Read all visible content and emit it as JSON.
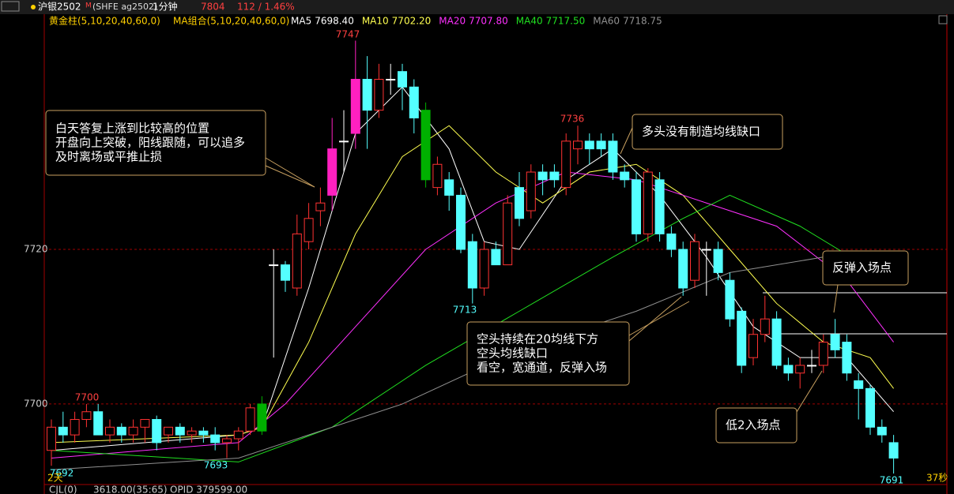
{
  "header": {
    "symbol": "沪银2502",
    "flag": "M",
    "code": "(SHFE ag2502)",
    "period": "1分钟",
    "price": "7804",
    "change": "112 / 1.46%"
  },
  "indicators": {
    "golden": "黄金柱(5,10,20,40,60,0)",
    "ma_group": "MA组合(5,10,20,40,60,0)"
  },
  "chart_data": {
    "type": "candlestick",
    "ylim": [
      7690.5,
      7749.5
    ],
    "yticks": [
      7700,
      7720
    ],
    "grid": true,
    "up_color": "#ff3232",
    "down_color": "#54ffff",
    "doji_color": "#ffffff",
    "candles": [
      {
        "open": 7694,
        "high": 7698,
        "low": 7692,
        "close": 7697
      },
      {
        "open": 7697,
        "high": 7699,
        "low": 7695,
        "close": 7696
      },
      {
        "open": 7696,
        "high": 7699,
        "low": 7695,
        "close": 7698
      },
      {
        "open": 7698,
        "high": 7700,
        "low": 7697,
        "close": 7699
      },
      {
        "open": 7699,
        "high": 7700,
        "low": 7696,
        "close": 7696
      },
      {
        "open": 7696,
        "high": 7698,
        "low": 7695,
        "close": 7697
      },
      {
        "open": 7697,
        "high": 7697.5,
        "low": 7695,
        "close": 7696
      },
      {
        "open": 7696,
        "high": 7698,
        "low": 7695,
        "close": 7697
      },
      {
        "open": 7697,
        "high": 7698,
        "low": 7695,
        "close": 7698
      },
      {
        "open": 7698,
        "high": 7698.5,
        "low": 7694,
        "close": 7695
      },
      {
        "open": 7696,
        "high": 7697,
        "low": 7695,
        "close": 7697
      },
      {
        "open": 7697,
        "high": 7697.5,
        "low": 7695,
        "close": 7696
      },
      {
        "open": 7696,
        "high": 7697,
        "low": 7695,
        "close": 7696.5
      },
      {
        "open": 7696.5,
        "high": 7697,
        "low": 7695,
        "close": 7696
      },
      {
        "open": 7696,
        "high": 7697,
        "low": 7694,
        "close": 7695
      },
      {
        "open": 7695,
        "high": 7696,
        "low": 7693,
        "close": 7695.5
      },
      {
        "open": 7695.5,
        "high": 7697,
        "low": 7694,
        "close": 7696.5
      },
      {
        "open": 7696.5,
        "high": 7700,
        "low": 7696,
        "close": 7699.5
      },
      {
        "open": 7696.5,
        "high": 7701,
        "low": 7696,
        "close": 7700,
        "fill": "#00b000"
      },
      {
        "open": 7718,
        "high": 7720,
        "low": 7706,
        "close": 7718
      },
      {
        "open": 7718,
        "high": 7718.5,
        "low": 7714.5,
        "close": 7716
      },
      {
        "open": 7715,
        "high": 7724.5,
        "low": 7714,
        "close": 7722
      },
      {
        "open": 7721,
        "high": 7726,
        "low": 7720,
        "close": 7724
      },
      {
        "open": 7725,
        "high": 7728,
        "low": 7723,
        "close": 7726
      },
      {
        "open": 7727,
        "high": 7737,
        "low": 7725,
        "close": 7733,
        "fill": "#ff20c0"
      },
      {
        "open": 7734,
        "high": 7738,
        "low": 7730,
        "close": 7734
      },
      {
        "open": 7735,
        "high": 7747,
        "low": 7733,
        "close": 7742,
        "fill": "#ff20c0"
      },
      {
        "open": 7742,
        "high": 7745,
        "low": 7733,
        "close": 7738
      },
      {
        "open": 7738,
        "high": 7744,
        "low": 7737,
        "close": 7742
      },
      {
        "open": 7742,
        "high": 7744,
        "low": 7740,
        "close": 7742
      },
      {
        "open": 7743,
        "high": 7744,
        "low": 7738,
        "close": 7741
      },
      {
        "open": 7741,
        "high": 7742,
        "low": 7735,
        "close": 7737
      },
      {
        "open": 7738,
        "high": 7739,
        "low": 7728,
        "close": 7729,
        "fill": "#00b000"
      },
      {
        "open": 7728,
        "high": 7732,
        "low": 7727,
        "close": 7731
      },
      {
        "open": 7729,
        "high": 7730,
        "low": 7725,
        "close": 7727
      },
      {
        "open": 7727,
        "high": 7728,
        "low": 7719.5,
        "close": 7720
      },
      {
        "open": 7721,
        "high": 7722,
        "low": 7713,
        "close": 7715
      },
      {
        "open": 7715,
        "high": 7721,
        "low": 7714,
        "close": 7720
      },
      {
        "open": 7720,
        "high": 7721,
        "low": 7718,
        "close": 7718
      },
      {
        "open": 7718,
        "high": 7727,
        "low": 7718,
        "close": 7726
      },
      {
        "open": 7728,
        "high": 7730,
        "low": 7723,
        "close": 7724
      },
      {
        "open": 7725,
        "high": 7731,
        "low": 7724,
        "close": 7730
      },
      {
        "open": 7730,
        "high": 7731,
        "low": 7727,
        "close": 7729
      },
      {
        "open": 7730,
        "high": 7731,
        "low": 7728,
        "close": 7729
      },
      {
        "open": 7728,
        "high": 7735,
        "low": 7727,
        "close": 7734
      },
      {
        "open": 7733,
        "high": 7736,
        "low": 7731,
        "close": 7734
      },
      {
        "open": 7734,
        "high": 7735,
        "low": 7731,
        "close": 7733
      },
      {
        "open": 7734,
        "high": 7735,
        "low": 7732,
        "close": 7733
      },
      {
        "open": 7734,
        "high": 7735,
        "low": 7729,
        "close": 7730
      },
      {
        "open": 7730,
        "high": 7731,
        "low": 7728,
        "close": 7729
      },
      {
        "open": 7729,
        "high": 7730,
        "low": 7721,
        "close": 7722
      },
      {
        "open": 7722,
        "high": 7730.5,
        "low": 7721,
        "close": 7730
      },
      {
        "open": 7729,
        "high": 7730,
        "low": 7721,
        "close": 7722
      },
      {
        "open": 7722,
        "high": 7723,
        "low": 7719,
        "close": 7720
      },
      {
        "open": 7720,
        "high": 7721,
        "low": 7714,
        "close": 7715
      },
      {
        "open": 7716,
        "high": 7722,
        "low": 7715,
        "close": 7721
      },
      {
        "open": 7720,
        "high": 7721,
        "low": 7714,
        "close": 7720
      },
      {
        "open": 7720,
        "high": 7721,
        "low": 7716,
        "close": 7717
      },
      {
        "open": 7716,
        "high": 7717,
        "low": 7710,
        "close": 7711
      },
      {
        "open": 7712,
        "high": 7712.5,
        "low": 7704,
        "close": 7705
      },
      {
        "open": 7706,
        "high": 7711,
        "low": 7705,
        "close": 7709
      },
      {
        "open": 7709,
        "high": 7714,
        "low": 7708,
        "close": 7711
      },
      {
        "open": 7711,
        "high": 7712,
        "low": 7704.5,
        "close": 7705
      },
      {
        "open": 7705,
        "high": 7706,
        "low": 7703,
        "close": 7704
      },
      {
        "open": 7704,
        "high": 7706,
        "low": 7702,
        "close": 7705
      },
      {
        "open": 7705,
        "high": 7707,
        "low": 7704,
        "close": 7705
      },
      {
        "open": 7705,
        "high": 7709,
        "low": 7704,
        "close": 7708
      },
      {
        "open": 7709,
        "high": 7711,
        "low": 7706,
        "close": 7707
      },
      {
        "open": 7708,
        "high": 7709,
        "low": 7703,
        "close": 7704
      },
      {
        "open": 7703,
        "high": 7704,
        "low": 7698,
        "close": 7702
      },
      {
        "open": 7702,
        "high": 7702.5,
        "low": 7696,
        "close": 7697
      },
      {
        "open": 7697,
        "high": 7698,
        "low": 7695,
        "close": 7696
      },
      {
        "open": 7695,
        "high": 7696,
        "low": 7691,
        "close": 7693
      }
    ],
    "series": [
      {
        "name": "MA5",
        "value_label": "7698.40",
        "color": "#ffffff",
        "x": [
          0,
          16,
          18,
          22,
          26,
          30,
          34,
          37,
          40,
          44,
          48,
          52,
          56,
          60,
          64,
          68,
          72
        ],
        "values": [
          7694,
          7696,
          7697,
          7715,
          7735,
          7741,
          7733,
          7721,
          7720,
          7729,
          7733,
          7727,
          7719,
          7710,
          7706,
          7706,
          7699
        ]
      },
      {
        "name": "MA10",
        "value_label": "7702.20",
        "color": "#ffff50",
        "x": [
          0,
          16,
          18,
          22,
          26,
          30,
          34,
          38,
          42,
          46,
          50,
          54,
          58,
          62,
          66,
          70,
          72
        ],
        "values": [
          7695,
          7696,
          7697,
          7708,
          7722,
          7732,
          7736,
          7730,
          7726,
          7730,
          7731,
          7727,
          7720,
          7713,
          7708,
          7706,
          7702
        ]
      },
      {
        "name": "MA20",
        "value_label": "7707.80",
        "color": "#ff30ff",
        "x": [
          0,
          16,
          20,
          26,
          32,
          38,
          44,
          50,
          56,
          62,
          68,
          72
        ],
        "values": [
          7693,
          7695,
          7700,
          7710,
          7720,
          7726,
          7730,
          7729,
          7726,
          7723,
          7716,
          7708
        ]
      },
      {
        "name": "MA40",
        "value_label": "7717.50",
        "color": "#20e020",
        "x": [
          0,
          16,
          24,
          32,
          40,
          48,
          54,
          58,
          64,
          70
        ],
        "values": [
          7694,
          7692.5,
          7697,
          7705,
          7712,
          7719,
          7724,
          7727,
          7723,
          7717.5
        ]
      },
      {
        "name": "MA60",
        "value_label": "7718.75",
        "color": "#909090",
        "x": [
          0,
          16,
          30,
          40,
          50,
          58,
          66,
          72
        ],
        "values": [
          7691.5,
          7693,
          7700,
          7707,
          7712,
          7717,
          7719,
          7719
        ]
      }
    ],
    "price_labels": [
      "7747",
      "7736",
      "7713",
      "7700",
      "7693",
      "7692",
      "7691"
    ],
    "annotations": [
      [
        "白天答复上涨到比较高的位置",
        "开盘向上突破，阳线跟随，可以追多",
        "及时离场或平推止损"
      ],
      [
        "多头没有制造均线缺口"
      ],
      [
        "空头持续在20均线下方",
        "空头均线缺口",
        "看空，宽通道，反弹入场"
      ],
      [
        "反弹入场点"
      ],
      [
        "低2入场点"
      ]
    ]
  },
  "footer": {
    "left": "2天",
    "right": "37秒",
    "volume": "CJL(0)",
    "value": "3618.00(35:65)",
    "opid": "OPID 379599.00"
  }
}
